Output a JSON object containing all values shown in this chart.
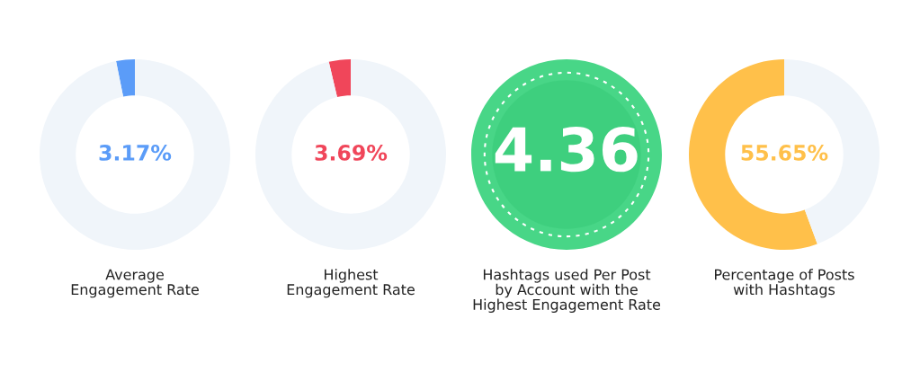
{
  "chart_data": [
    {
      "type": "donut",
      "title": "Average\nEngagement Rate",
      "categories": [
        null,
        null
      ],
      "values": [
        3.17,
        96.83
      ],
      "colors": [
        "#5b9cf8",
        "#f0f5fa"
      ],
      "annotations": [
        "3.17%"
      ]
    },
    {
      "type": "donut",
      "title": "Highest\nEngagement Rate",
      "categories": [
        null,
        null
      ],
      "values": [
        3.69,
        96.31
      ],
      "colors": [
        "#f0465a",
        "#f0f5fa"
      ],
      "annotations": [
        "3.69%"
      ]
    },
    {
      "type": "other",
      "title": "Hashtags used Per Post\nby Account with the\nHighest Engagement Rate",
      "annotations": [
        "4.36"
      ]
    },
    {
      "type": "donut",
      "title": "Percentage of Posts\nwith Hashtags",
      "categories": [
        null,
        null
      ],
      "values": [
        55.65,
        44.35
      ],
      "colors": [
        "#ffc04a",
        "#f0f5fa"
      ],
      "annotations": [
        "55.65%"
      ]
    }
  ]
}
